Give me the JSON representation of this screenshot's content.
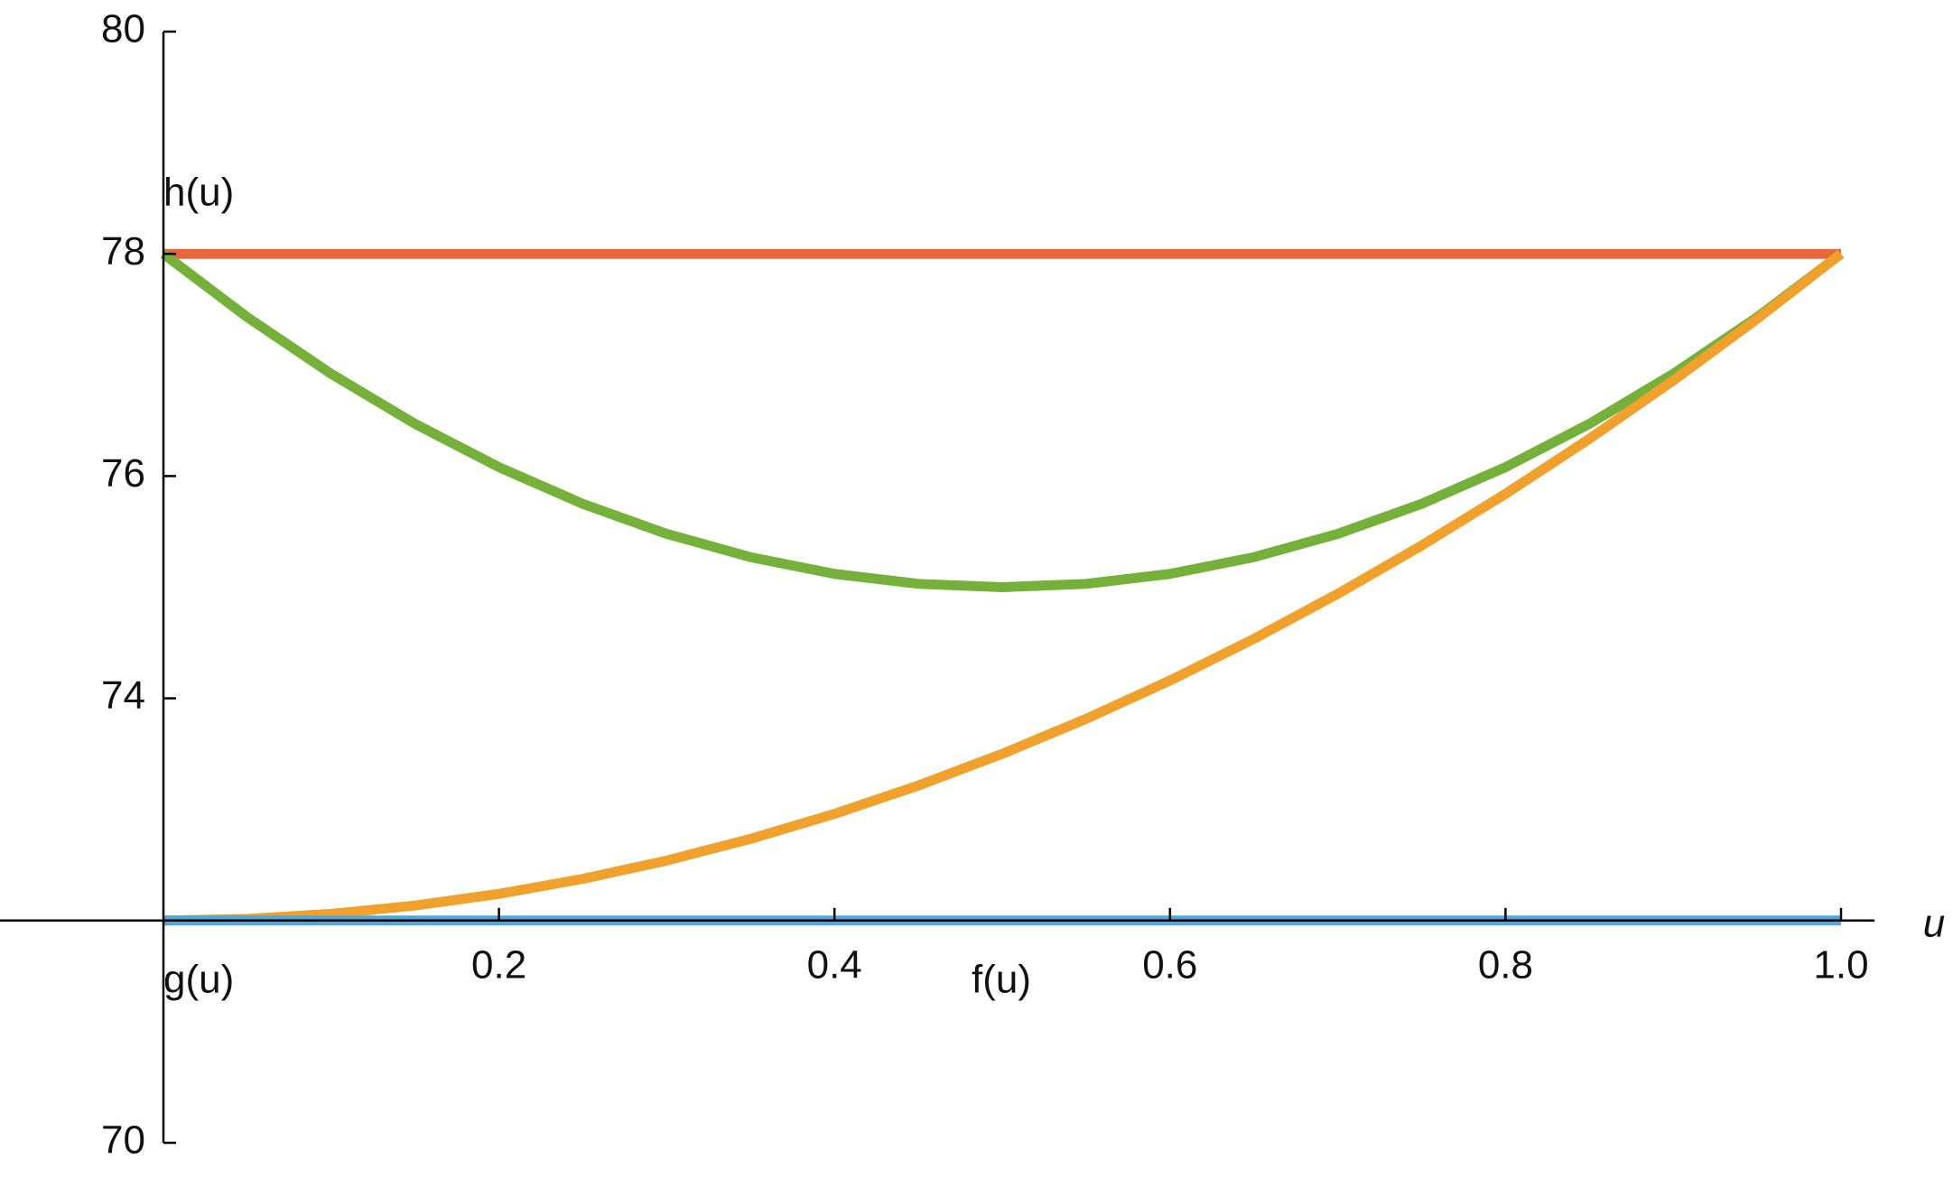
{
  "chart_data": {
    "type": "line",
    "x": [
      0,
      0.05,
      0.1,
      0.15,
      0.2,
      0.25,
      0.3,
      0.35,
      0.4,
      0.45,
      0.5,
      0.55,
      0.6,
      0.65,
      0.7,
      0.75,
      0.8,
      0.85,
      0.9,
      0.95,
      1
    ],
    "series": [
      {
        "color": "#e8673a",
        "values": [
          78,
          78,
          78,
          78,
          78,
          78,
          78,
          78,
          78,
          78,
          78,
          78,
          78,
          78,
          78,
          78,
          78,
          78,
          78,
          78,
          78
        ]
      },
      {
        "color": "#74b03a",
        "values": [
          78,
          77.43,
          76.92,
          76.47,
          76.08,
          75.75,
          75.48,
          75.27,
          75.12,
          75.03,
          75,
          75.03,
          75.12,
          75.27,
          75.48,
          75.75,
          76.08,
          76.47,
          76.92,
          77.43,
          78
        ]
      },
      {
        "color": "#f0a02c",
        "values": [
          72,
          72.015,
          72.06,
          72.135,
          72.24,
          72.375,
          72.54,
          72.735,
          72.96,
          73.215,
          73.5,
          73.815,
          74.16,
          74.535,
          74.94,
          75.375,
          75.84,
          76.335,
          76.86,
          77.415,
          78
        ]
      },
      {
        "color": "#52a6d8",
        "values": [
          72,
          72,
          72,
          72,
          72,
          72,
          72,
          72,
          72,
          72,
          72,
          72,
          72,
          72,
          72,
          72,
          72,
          72,
          72,
          72,
          72
        ]
      }
    ],
    "annotations": [
      "h(u)",
      "g(u)",
      "f(u)"
    ],
    "x_label": "u",
    "xlim": [
      -0.1,
      1.02
    ],
    "ylim": [
      70,
      80
    ],
    "xticks": [
      0.2,
      0.4,
      0.6,
      0.8,
      {
        "value": 1,
        "label": "1.0"
      }
    ],
    "yticks": [
      70,
      74,
      76,
      78,
      80
    ],
    "grid": false
  }
}
